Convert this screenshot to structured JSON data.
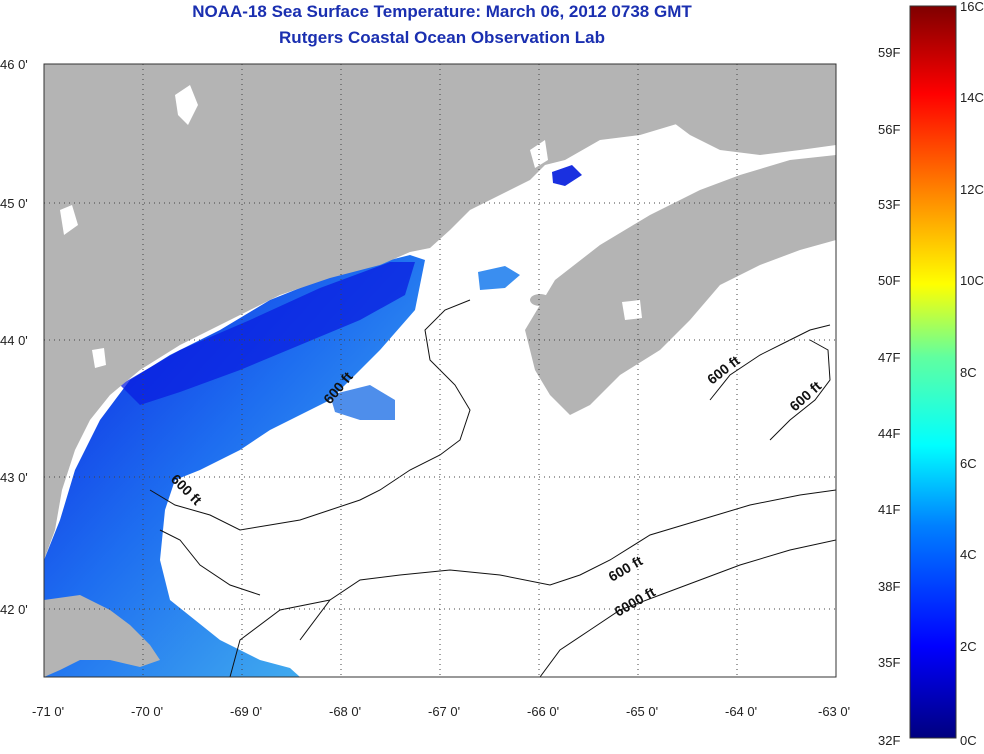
{
  "title": {
    "line1": "NOAA-18 Sea Surface Temperature:  March 06, 2012 0738 GMT",
    "line2": "Rutgers Coastal Ocean Observation Lab"
  },
  "map": {
    "lon_range": [
      -71,
      -63
    ],
    "lat_range": [
      41.5,
      46
    ],
    "lon_ticks": [
      "-71 0'",
      "-70 0'",
      "-69 0'",
      "-68 0'",
      "-67 0'",
      "-66 0'",
      "-65 0'",
      "-64 0'",
      "-63 0'"
    ],
    "lat_ticks": [
      "46 0'",
      "45 0'",
      "44 0'",
      "43 0'",
      "42 0'"
    ],
    "land_color": "#b4b4b4",
    "water_color": "#ffffff",
    "contour_labels": [
      {
        "text": "600 ft",
        "lon": -68.0,
        "lat": 43.7
      },
      {
        "text": "600 ft",
        "lon": -69.8,
        "lat": 42.95
      },
      {
        "text": "600 ft",
        "lon": -64.1,
        "lat": 43.8
      },
      {
        "text": "600 ft",
        "lon": -63.3,
        "lat": 43.6
      },
      {
        "text": "600 ft",
        "lon": -65.6,
        "lat": 42.3
      },
      {
        "text": "6000 ft",
        "lon": -65.5,
        "lat": 42.0
      }
    ]
  },
  "colorbar": {
    "celsius_labels": [
      "16C",
      "14C",
      "12C",
      "10C",
      "8C",
      "6C",
      "4C",
      "2C",
      "0C"
    ],
    "fahrenheit_labels": [
      "59F",
      "56F",
      "53F",
      "50F",
      "47F",
      "44F",
      "41F",
      "38F",
      "35F",
      "32F"
    ],
    "colors": [
      "#7f0000",
      "#ff0000",
      "#ff8000",
      "#ffff00",
      "#80ff80",
      "#00ffff",
      "#0080ff",
      "#0000ff",
      "#00007f"
    ]
  }
}
